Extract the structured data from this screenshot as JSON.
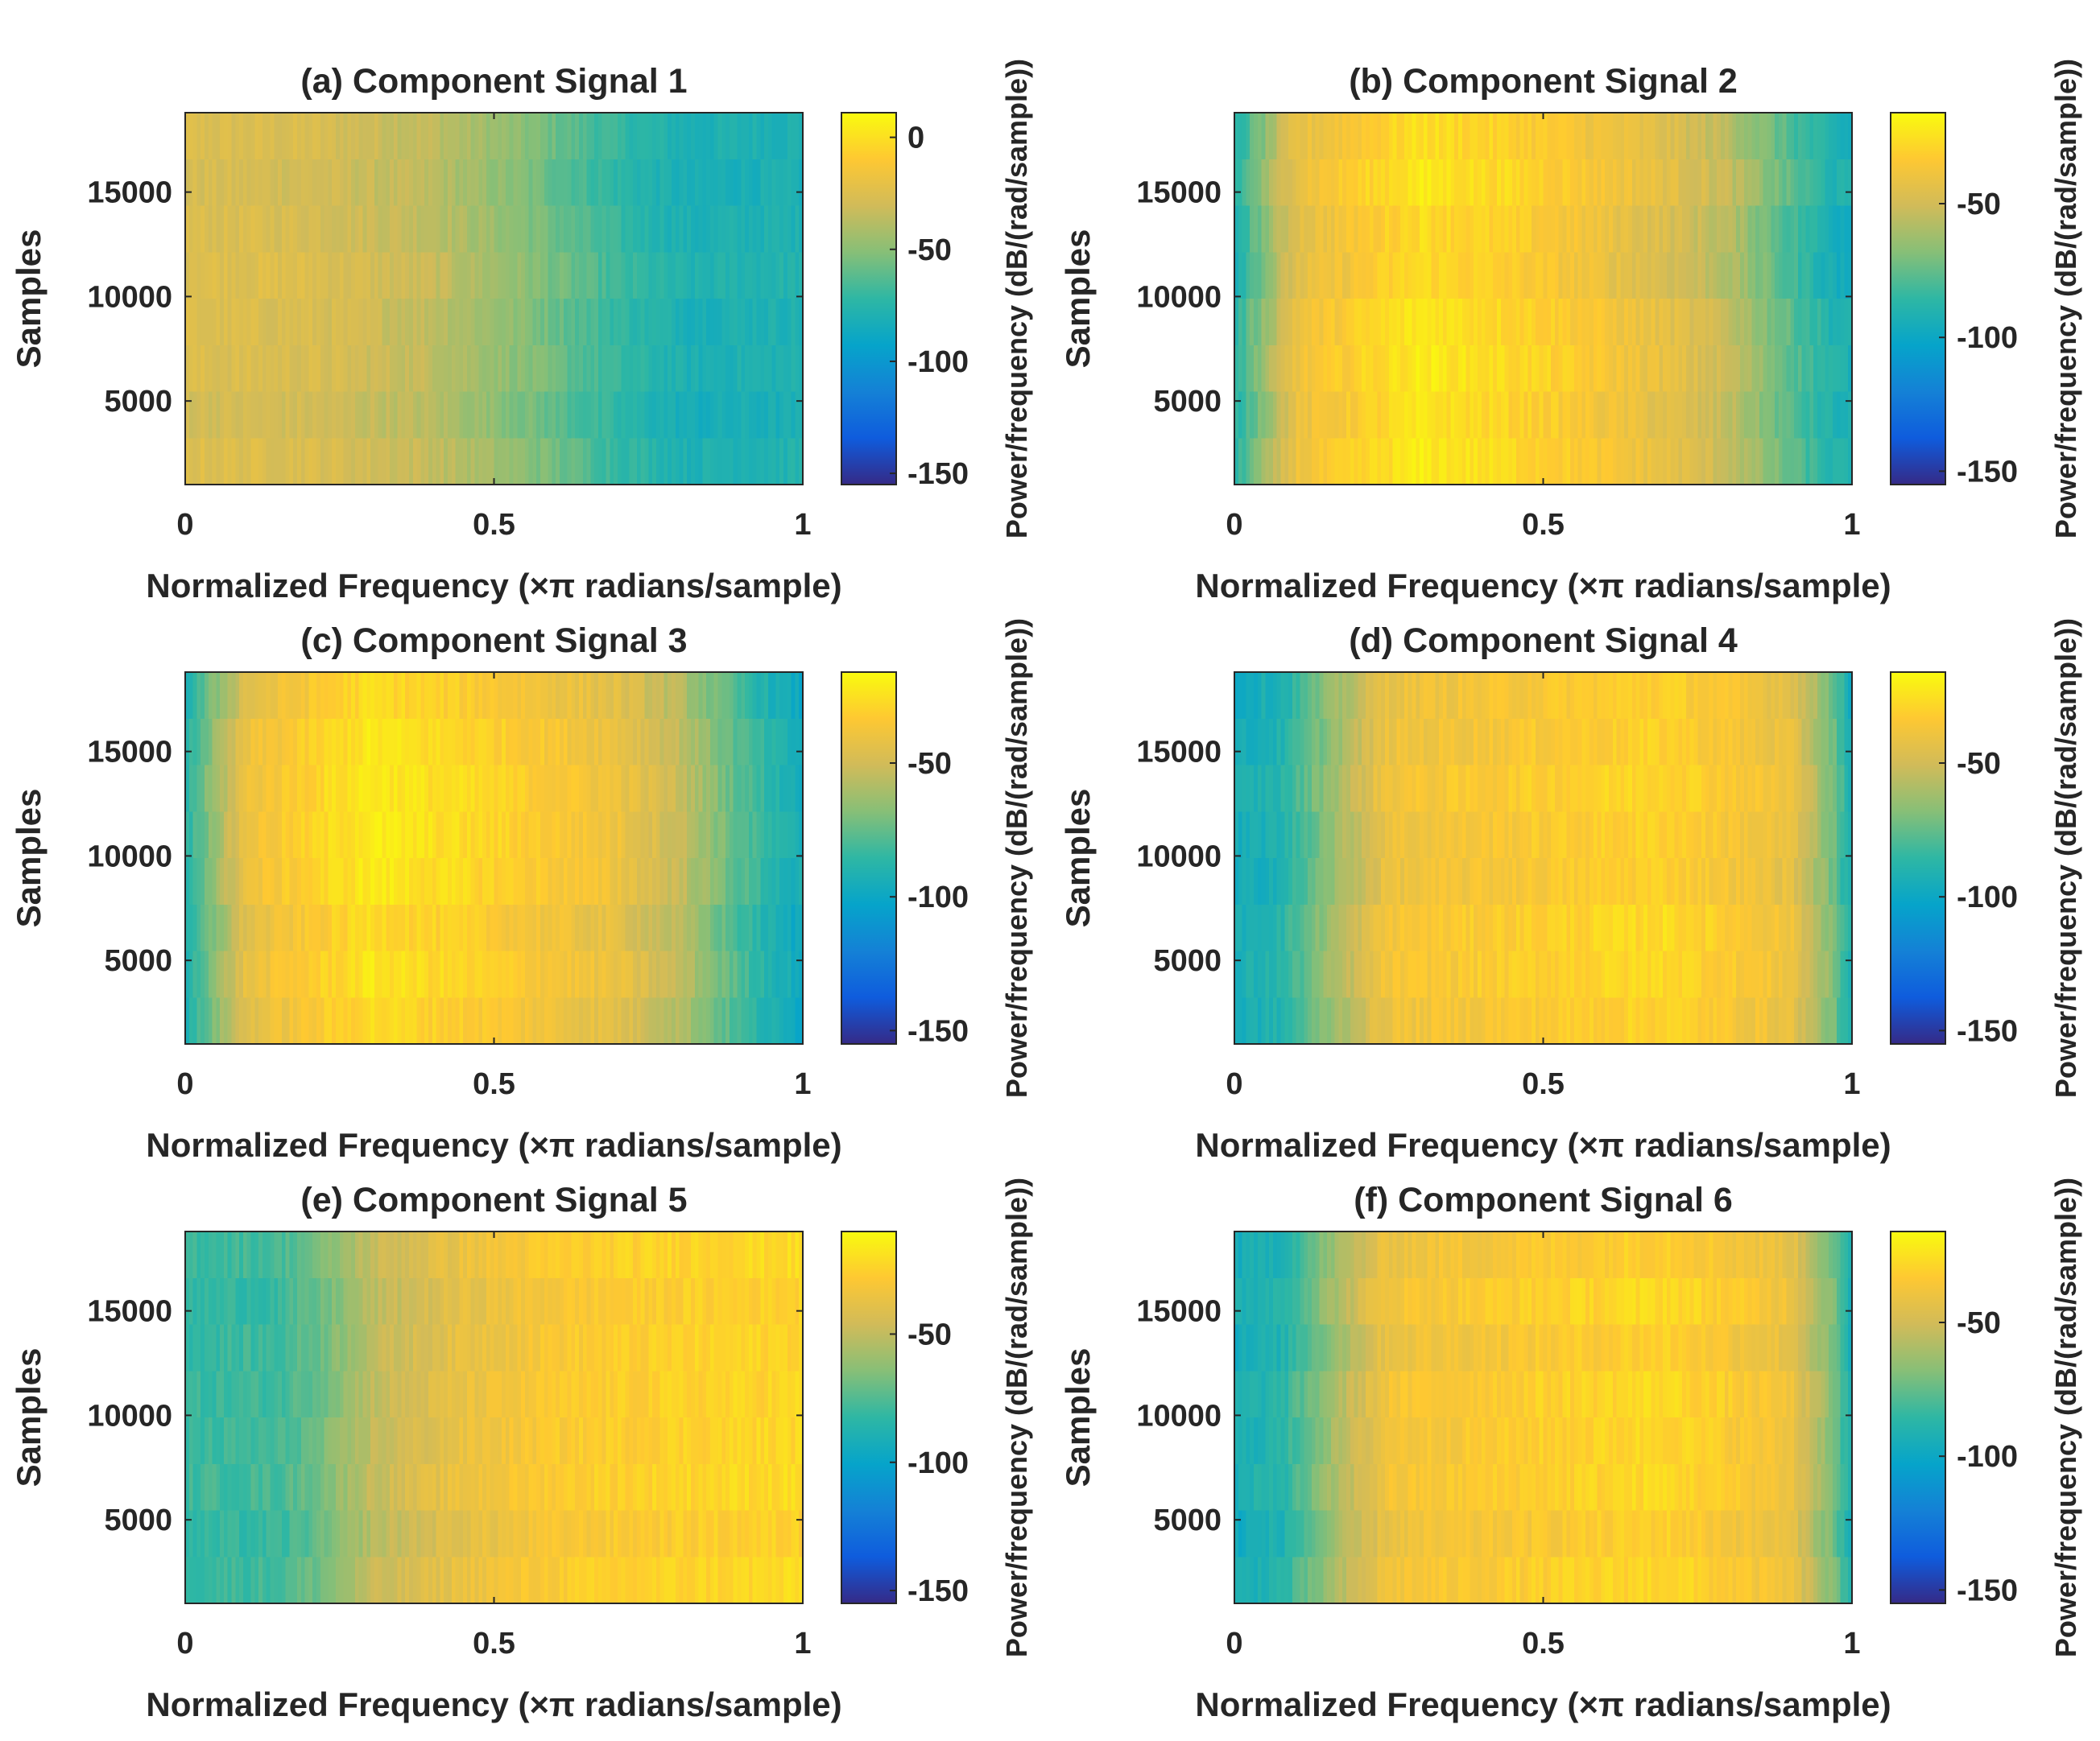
{
  "figure": {
    "panel_count": 6,
    "colormap": "parula",
    "colormap_stops": [
      "#352A87",
      "#0F5CDD",
      "#1481D6",
      "#06A4CA",
      "#2EB7A4",
      "#87BF77",
      "#D1BB59",
      "#FEC832",
      "#F9FB0E"
    ]
  },
  "chart_data": [
    {
      "type": "heatmap",
      "title": "(a) Component Signal 1",
      "xlabel": "Normalized Frequency (×π radians/sample)",
      "ylabel": "Samples",
      "colorbar_label": "Power/frequency (dB/(rad/sample))",
      "xlim": [
        0,
        1
      ],
      "ylim": [
        1000,
        18800
      ],
      "xticks": [
        0,
        0.5,
        1
      ],
      "xtick_labels": [
        "0",
        "0.5",
        "1"
      ],
      "yticks": [
        5000,
        10000,
        15000
      ],
      "ytick_labels": [
        "5000",
        "10000",
        "15000"
      ],
      "clim": [
        -155,
        11
      ],
      "cticks": [
        0,
        -50,
        -100,
        -150
      ],
      "ctick_labels": [
        "0",
        "-50",
        "-100",
        "-150"
      ],
      "time_rows": 8,
      "power_profile_db": {
        "frequency": [
          0,
          0.2,
          0.4,
          0.55,
          0.7,
          0.82,
          0.9,
          1.0
        ],
        "power": [
          -27,
          -28,
          -36,
          -52,
          -72,
          -82,
          -80,
          -80
        ]
      }
    },
    {
      "type": "heatmap",
      "title": "(b) Component Signal 2",
      "xlabel": "Normalized Frequency (×π radians/sample)",
      "ylabel": "Samples",
      "colorbar_label": "Power/frequency (dB/(rad/sample))",
      "xlim": [
        0,
        1
      ],
      "ylim": [
        1000,
        18800
      ],
      "xticks": [
        0,
        0.5,
        1
      ],
      "xtick_labels": [
        "0",
        "0.5",
        "1"
      ],
      "yticks": [
        5000,
        10000,
        15000
      ],
      "ytick_labels": [
        "5000",
        "10000",
        "15000"
      ],
      "clim": [
        -155,
        -16
      ],
      "cticks": [
        -50,
        -100,
        -150
      ],
      "ctick_labels": [
        "-50",
        "-100",
        "-150"
      ],
      "time_rows": 8,
      "power_profile_db": {
        "frequency": [
          0,
          0.03,
          0.1,
          0.3,
          0.5,
          0.7,
          0.8,
          0.9,
          0.97,
          1.0
        ],
        "power": [
          -90,
          -75,
          -42,
          -24,
          -32,
          -45,
          -55,
          -78,
          -92,
          -95
        ]
      }
    },
    {
      "type": "heatmap",
      "title": "(c) Component Signal 3",
      "xlabel": "Normalized Frequency (×π radians/sample)",
      "ylabel": "Samples",
      "colorbar_label": "Power/frequency (dB/(rad/sample))",
      "xlim": [
        0,
        1
      ],
      "ylim": [
        1000,
        18800
      ],
      "xticks": [
        0,
        0.5,
        1
      ],
      "xtick_labels": [
        "0",
        "0.5",
        "1"
      ],
      "yticks": [
        5000,
        10000,
        15000
      ],
      "ytick_labels": [
        "5000",
        "10000",
        "15000"
      ],
      "clim": [
        -155,
        -16
      ],
      "cticks": [
        -50,
        -100,
        -150
      ],
      "ctick_labels": [
        "-50",
        "-100",
        "-150"
      ],
      "time_rows": 8,
      "power_profile_db": {
        "frequency": [
          0,
          0.03,
          0.1,
          0.3,
          0.5,
          0.7,
          0.8,
          0.9,
          0.97,
          1.0
        ],
        "power": [
          -92,
          -75,
          -42,
          -24,
          -32,
          -42,
          -55,
          -80,
          -94,
          -97
        ]
      }
    },
    {
      "type": "heatmap",
      "title": "(d) Component Signal 4",
      "xlabel": "Normalized Frequency (×π radians/sample)",
      "ylabel": "Samples",
      "colorbar_label": "Power/frequency (dB/(rad/sample))",
      "xlim": [
        0,
        1
      ],
      "ylim": [
        1000,
        18800
      ],
      "xticks": [
        0,
        0.5,
        1
      ],
      "xtick_labels": [
        "0",
        "0.5",
        "1"
      ],
      "yticks": [
        5000,
        10000,
        15000
      ],
      "ytick_labels": [
        "5000",
        "10000",
        "15000"
      ],
      "clim": [
        -155,
        -16
      ],
      "cticks": [
        -50,
        -100,
        -150
      ],
      "ctick_labels": [
        "-50",
        "-100",
        "-150"
      ],
      "time_rows": 8,
      "power_profile_db": {
        "frequency": [
          0,
          0.08,
          0.15,
          0.25,
          0.5,
          0.7,
          0.9,
          0.97,
          1.0
        ],
        "power": [
          -95,
          -88,
          -65,
          -38,
          -32,
          -28,
          -40,
          -70,
          -95
        ]
      }
    },
    {
      "type": "heatmap",
      "title": "(e) Component Signal 5",
      "xlabel": "Normalized Frequency (×π radians/sample)",
      "ylabel": "Samples",
      "colorbar_label": "Power/frequency (dB/(rad/sample))",
      "xlim": [
        0,
        1
      ],
      "ylim": [
        1000,
        18800
      ],
      "xticks": [
        0,
        0.5,
        1
      ],
      "xtick_labels": [
        "0",
        "0.5",
        "1"
      ],
      "yticks": [
        5000,
        10000,
        15000
      ],
      "ytick_labels": [
        "5000",
        "10000",
        "15000"
      ],
      "clim": [
        -155,
        -10
      ],
      "cticks": [
        -50,
        -100,
        -150
      ],
      "ctick_labels": [
        "-50",
        "-100",
        "-150"
      ],
      "time_rows": 8,
      "power_profile_db": {
        "frequency": [
          0,
          0.15,
          0.22,
          0.3,
          0.45,
          0.6,
          0.8,
          1.0
        ],
        "power": [
          -82,
          -80,
          -70,
          -52,
          -38,
          -30,
          -26,
          -24
        ]
      }
    },
    {
      "type": "heatmap",
      "title": "(f) Component Signal 6",
      "xlabel": "Normalized Frequency (×π radians/sample)",
      "ylabel": "Samples",
      "colorbar_label": "Power/frequency (dB/(rad/sample))",
      "xlim": [
        0,
        1
      ],
      "ylim": [
        1000,
        18800
      ],
      "xticks": [
        0,
        0.5,
        1
      ],
      "xtick_labels": [
        "0",
        "0.5",
        "1"
      ],
      "yticks": [
        5000,
        10000,
        15000
      ],
      "ytick_labels": [
        "5000",
        "10000",
        "15000"
      ],
      "clim": [
        -155,
        -16
      ],
      "cticks": [
        -50,
        -100,
        -150
      ],
      "ctick_labels": [
        "-50",
        "-100",
        "-150"
      ],
      "time_rows": 8,
      "power_profile_db": {
        "frequency": [
          0,
          0.08,
          0.15,
          0.25,
          0.5,
          0.7,
          0.9,
          0.97,
          1.0
        ],
        "power": [
          -95,
          -88,
          -65,
          -38,
          -32,
          -28,
          -40,
          -70,
          -95
        ]
      }
    }
  ]
}
